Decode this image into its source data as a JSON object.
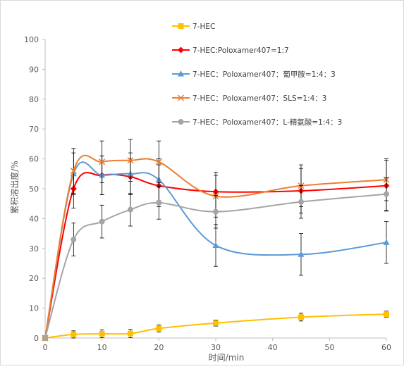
{
  "chart_data": {
    "type": "line",
    "xlabel": "时间/min",
    "ylabel": "累积溶出度/%",
    "xlim": [
      0,
      60
    ],
    "ylim": [
      0,
      100
    ],
    "xticks": [
      0,
      10,
      20,
      30,
      40,
      50,
      60
    ],
    "yticks": [
      0,
      10,
      20,
      30,
      40,
      50,
      60,
      70,
      80,
      90,
      100
    ],
    "grid": false,
    "legend_position": "top-right",
    "x": [
      0,
      5,
      10,
      15,
      20,
      30,
      45,
      60
    ],
    "series": [
      {
        "name": "7-HEC",
        "color": "#ffc000",
        "marker": "square",
        "values": [
          0,
          1.2,
          1.4,
          1.5,
          3.2,
          5.0,
          7.0,
          8.0
        ],
        "errors": [
          0,
          1.2,
          1.3,
          1.4,
          1.2,
          1.0,
          1.3,
          1.0
        ]
      },
      {
        "name": "7-HEC:Poloxamer407=1:7",
        "color": "#ff0000",
        "marker": "diamond",
        "values": [
          0,
          50.0,
          54.5,
          54.0,
          51.0,
          49.0,
          49.3,
          51.0
        ],
        "errors": [
          0,
          6.5,
          6.5,
          6.0,
          7.0,
          6.5,
          7.5,
          8.5
        ]
      },
      {
        "name": "7-HEC：Poloxamer407：葡甲胺=1:4：3",
        "color": "#5b9bd5",
        "marker": "triangle",
        "values": [
          0,
          55.0,
          54.5,
          55.0,
          53.0,
          31.0,
          28.0,
          32.0
        ],
        "errors": [
          0,
          7.0,
          6.5,
          7.0,
          7.0,
          7.0,
          7.0,
          7.0
        ]
      },
      {
        "name": "7-HEC：Poloxamer407：SLS=1:4：3",
        "color": "#ed7d31",
        "marker": "x",
        "values": [
          0,
          56.0,
          59.0,
          59.5,
          59.0,
          47.5,
          51.0,
          53.0
        ],
        "errors": [
          0,
          7.5,
          7.0,
          7.0,
          7.0,
          7.0,
          7.0,
          7.0
        ]
      },
      {
        "name": "7-HEC：Poloxamer407：L-精氨酸=1:4：3",
        "color": "#a5a5a5",
        "marker": "circle",
        "values": [
          0,
          33.0,
          39.0,
          43.0,
          45.3,
          42.3,
          45.6,
          48.2
        ],
        "errors": [
          0,
          5.5,
          5.5,
          5.5,
          5.5,
          5.5,
          5.5,
          5.5
        ]
      }
    ]
  }
}
